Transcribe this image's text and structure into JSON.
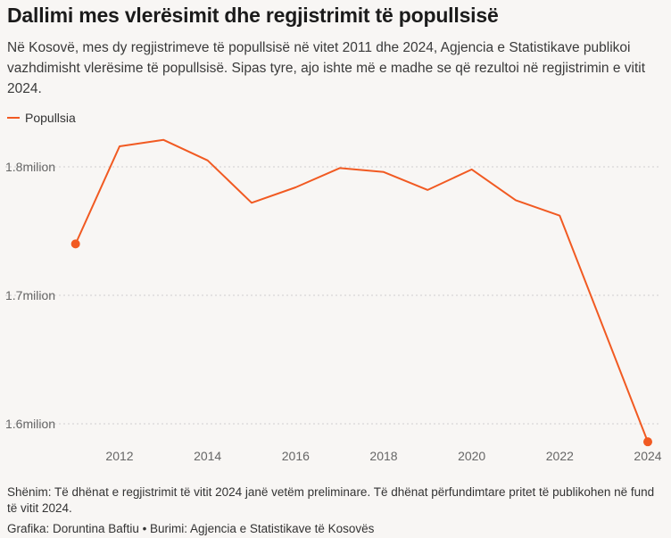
{
  "header": {
    "title": "Dallimi mes vlerësimit dhe regjistrimit të popullsisë",
    "subtitle": "Në Kosovë, mes dy regjistrimeve të popullsisë në vitet 2011 dhe 2024, Agjencia e Statistikave publikoi vazhdimisht vlerësime të popullsisë. Sipas tyre, ajo ishte më e madhe se që rezultoi në regjistrimin e vitit 2024."
  },
  "legend": {
    "label": "Popullsia",
    "color": "#f15a22"
  },
  "chart_data": {
    "type": "line",
    "series": [
      {
        "name": "Popullsia",
        "color": "#f15a22",
        "x": [
          2011,
          2012,
          2013,
          2014,
          2015,
          2016,
          2017,
          2018,
          2019,
          2020,
          2021,
          2022,
          2024
        ],
        "y": [
          1.74,
          1.816,
          1.821,
          1.805,
          1.772,
          1.784,
          1.799,
          1.796,
          1.782,
          1.798,
          1.774,
          1.762,
          1.586
        ],
        "markers_at": [
          2011,
          2024
        ]
      }
    ],
    "y_ticks": [
      {
        "value": 1.6,
        "label": "1.6milion"
      },
      {
        "value": 1.7,
        "label": "1.7milion"
      },
      {
        "value": 1.8,
        "label": "1.8milion"
      }
    ],
    "x_ticks": [
      {
        "value": 2012,
        "label": "2012"
      },
      {
        "value": 2014,
        "label": "2014"
      },
      {
        "value": 2016,
        "label": "2016"
      },
      {
        "value": 2018,
        "label": "2018"
      },
      {
        "value": 2020,
        "label": "2020"
      },
      {
        "value": 2022,
        "label": "2022"
      },
      {
        "value": 2024,
        "label": "2024"
      }
    ],
    "xlim": [
      2010.5,
      2024.2
    ],
    "ylim": [
      1.58,
      1.83
    ],
    "grid": "horizontal-dashed",
    "legend_position": "top-left"
  },
  "footer": {
    "note": "Shënim: Të dhënat e regjistrimit të vitit 2024 janë vetëm preliminare. Të dhënat përfundimtare pritet të publikohen në fund të vitit 2024.",
    "credit": "Grafika: Doruntina Baftiu • Burimi: Agjencia e Statistikave të Kosovës"
  }
}
